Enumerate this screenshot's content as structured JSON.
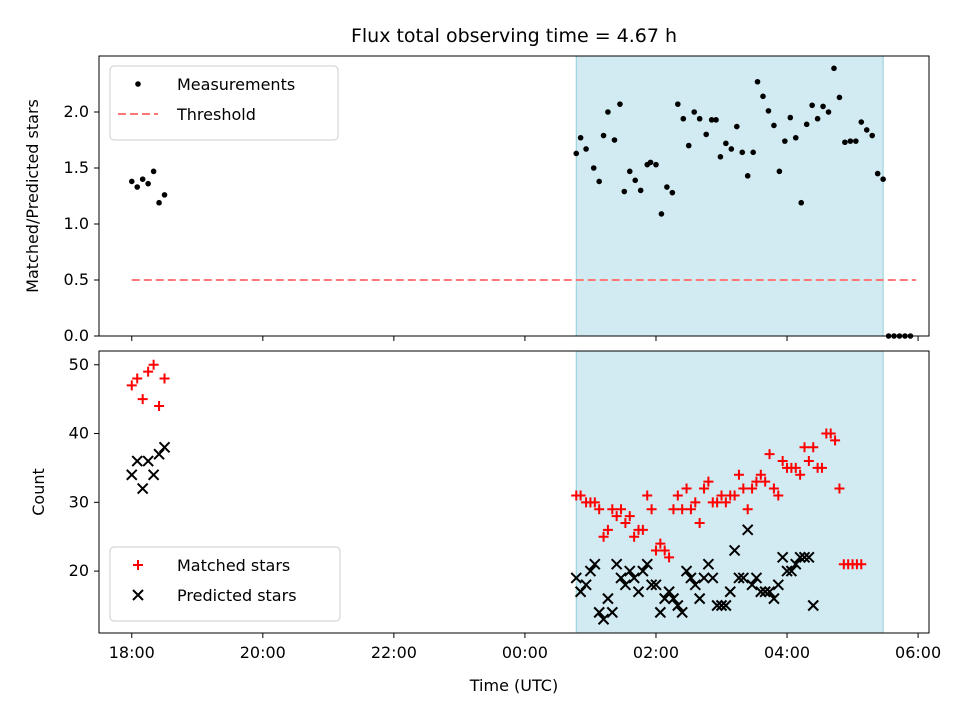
{
  "chart_data": [
    {
      "type": "scatter",
      "title": "Flux total observing time = 4.67 h",
      "xlabel": "",
      "ylabel": "Matched/Predicted stars",
      "xlim": [
        "17:30",
        "06:10"
      ],
      "ylim": [
        0,
        2.5
      ],
      "yticks": [
        "0.0",
        "0.5",
        "1.0",
        "1.5",
        "2.0"
      ],
      "shaded_region": {
        "start": "00:47",
        "end": "05:28",
        "color": "#add8e6"
      },
      "legend": {
        "placement": "top-left",
        "entries": [
          "Measurements",
          "Threshold"
        ]
      },
      "threshold": {
        "name": "Threshold",
        "value": 0.5,
        "x_start": "18:00",
        "x_end": "05:58",
        "color": "#ff7777",
        "style": "dashed"
      },
      "series": [
        {
          "name": "Measurements",
          "color": "#000000",
          "marker": "dot",
          "points": [
            [
              "18:00",
              1.38
            ],
            [
              "18:05",
              1.33
            ],
            [
              "18:10",
              1.4
            ],
            [
              "18:15",
              1.36
            ],
            [
              "18:20",
              1.47
            ],
            [
              "18:25",
              1.19
            ],
            [
              "18:30",
              1.26
            ],
            [
              "00:47",
              1.63
            ],
            [
              "00:51",
              1.77
            ],
            [
              "00:56",
              1.67
            ],
            [
              "01:03",
              1.5
            ],
            [
              "01:08",
              1.38
            ],
            [
              "01:12",
              1.79
            ],
            [
              "01:16",
              2.0
            ],
            [
              "01:22",
              1.75
            ],
            [
              "01:27",
              2.07
            ],
            [
              "01:31",
              1.29
            ],
            [
              "01:36",
              1.47
            ],
            [
              "01:41",
              1.39
            ],
            [
              "01:46",
              1.3
            ],
            [
              "01:52",
              1.53
            ],
            [
              "01:55",
              1.55
            ],
            [
              "02:00",
              1.53
            ],
            [
              "02:05",
              1.09
            ],
            [
              "02:10",
              1.33
            ],
            [
              "02:15",
              1.28
            ],
            [
              "02:20",
              2.07
            ],
            [
              "02:25",
              1.94
            ],
            [
              "02:30",
              1.7
            ],
            [
              "02:35",
              2.0
            ],
            [
              "02:40",
              1.94
            ],
            [
              "02:46",
              1.8
            ],
            [
              "02:51",
              1.93
            ],
            [
              "02:55",
              1.93
            ],
            [
              "02:59",
              1.6
            ],
            [
              "03:04",
              1.72
            ],
            [
              "03:09",
              1.67
            ],
            [
              "03:14",
              1.87
            ],
            [
              "03:19",
              1.64
            ],
            [
              "03:24",
              1.43
            ],
            [
              "03:29",
              1.64
            ],
            [
              "03:33",
              2.27
            ],
            [
              "03:38",
              2.14
            ],
            [
              "03:43",
              2.01
            ],
            [
              "03:48",
              1.88
            ],
            [
              "03:53",
              1.47
            ],
            [
              "03:58",
              1.74
            ],
            [
              "04:03",
              1.95
            ],
            [
              "04:08",
              1.77
            ],
            [
              "04:13",
              1.19
            ],
            [
              "04:18",
              1.89
            ],
            [
              "04:23",
              2.06
            ],
            [
              "04:28",
              1.94
            ],
            [
              "04:33",
              2.05
            ],
            [
              "04:38",
              2.0
            ],
            [
              "04:43",
              2.39
            ],
            [
              "04:48",
              2.13
            ],
            [
              "04:53",
              1.73
            ],
            [
              "04:58",
              1.74
            ],
            [
              "05:03",
              1.74
            ],
            [
              "05:08",
              1.91
            ],
            [
              "05:13",
              1.84
            ],
            [
              "05:18",
              1.79
            ],
            [
              "05:23",
              1.45
            ],
            [
              "05:28",
              1.4
            ],
            [
              "05:33",
              0.0
            ],
            [
              "05:38",
              0.0
            ],
            [
              "05:43",
              0.0
            ],
            [
              "05:48",
              0.0
            ],
            [
              "05:53",
              0.0
            ]
          ]
        }
      ]
    },
    {
      "type": "scatter",
      "title": "",
      "xlabel": "Time (UTC)",
      "ylabel": "Count",
      "xlim": [
        "17:30",
        "06:10"
      ],
      "ylim": [
        11,
        52
      ],
      "yticks": [
        "20",
        "30",
        "40",
        "50"
      ],
      "xticks": [
        "18:00",
        "20:00",
        "22:00",
        "00:00",
        "02:00",
        "04:00",
        "06:00"
      ],
      "shaded_region": {
        "start": "00:47",
        "end": "05:28",
        "color": "#add8e6"
      },
      "legend": {
        "placement": "bottom-left",
        "entries": [
          "Matched stars",
          "Predicted stars"
        ]
      },
      "series": [
        {
          "name": "Matched stars",
          "color": "#ff0000",
          "marker": "plus",
          "points": [
            [
              "18:00",
              47
            ],
            [
              "18:05",
              48
            ],
            [
              "18:10",
              45
            ],
            [
              "18:15",
              49
            ],
            [
              "18:20",
              50
            ],
            [
              "18:25",
              44
            ],
            [
              "18:30",
              48
            ],
            [
              "00:47",
              31
            ],
            [
              "00:51",
              31
            ],
            [
              "00:56",
              30
            ],
            [
              "01:00",
              30
            ],
            [
              "01:04",
              30
            ],
            [
              "01:08",
              29
            ],
            [
              "01:12",
              25
            ],
            [
              "01:16",
              26
            ],
            [
              "01:20",
              29
            ],
            [
              "01:24",
              28
            ],
            [
              "01:28",
              29
            ],
            [
              "01:32",
              27
            ],
            [
              "01:36",
              28
            ],
            [
              "01:40",
              25
            ],
            [
              "01:44",
              26
            ],
            [
              "01:48",
              26
            ],
            [
              "01:52",
              31
            ],
            [
              "01:56",
              29
            ],
            [
              "02:00",
              23
            ],
            [
              "02:04",
              24
            ],
            [
              "02:08",
              23
            ],
            [
              "02:12",
              22
            ],
            [
              "02:16",
              29
            ],
            [
              "02:20",
              31
            ],
            [
              "02:24",
              29
            ],
            [
              "02:28",
              32
            ],
            [
              "02:32",
              29
            ],
            [
              "02:36",
              30
            ],
            [
              "02:40",
              27
            ],
            [
              "02:44",
              32
            ],
            [
              "02:48",
              33
            ],
            [
              "02:52",
              30
            ],
            [
              "02:56",
              30
            ],
            [
              "03:00",
              31
            ],
            [
              "03:04",
              30
            ],
            [
              "03:08",
              31
            ],
            [
              "03:12",
              31
            ],
            [
              "03:16",
              34
            ],
            [
              "03:20",
              32
            ],
            [
              "03:24",
              29
            ],
            [
              "03:28",
              32
            ],
            [
              "03:32",
              33
            ],
            [
              "03:36",
              34
            ],
            [
              "03:40",
              33
            ],
            [
              "03:44",
              37
            ],
            [
              "03:48",
              32
            ],
            [
              "03:52",
              31
            ],
            [
              "03:56",
              36
            ],
            [
              "04:00",
              35
            ],
            [
              "04:04",
              35
            ],
            [
              "04:08",
              35
            ],
            [
              "04:12",
              34
            ],
            [
              "04:16",
              38
            ],
            [
              "04:20",
              36
            ],
            [
              "04:24",
              38
            ],
            [
              "04:28",
              35
            ],
            [
              "04:32",
              35
            ],
            [
              "04:36",
              40
            ],
            [
              "04:40",
              40
            ],
            [
              "04:44",
              39
            ],
            [
              "04:48",
              32
            ],
            [
              "04:52",
              21
            ],
            [
              "04:56",
              21
            ],
            [
              "05:00",
              21
            ],
            [
              "05:04",
              21
            ],
            [
              "05:08",
              21
            ]
          ]
        },
        {
          "name": "Predicted stars",
          "color": "#000000",
          "marker": "x",
          "points": [
            [
              "18:00",
              34
            ],
            [
              "18:05",
              36
            ],
            [
              "18:10",
              32
            ],
            [
              "18:15",
              36
            ],
            [
              "18:20",
              34
            ],
            [
              "18:25",
              37
            ],
            [
              "18:30",
              38
            ],
            [
              "00:47",
              19
            ],
            [
              "00:51",
              17
            ],
            [
              "00:56",
              18
            ],
            [
              "01:00",
              20
            ],
            [
              "01:04",
              21
            ],
            [
              "01:08",
              14
            ],
            [
              "01:12",
              13
            ],
            [
              "01:16",
              16
            ],
            [
              "01:20",
              14
            ],
            [
              "01:24",
              21
            ],
            [
              "01:28",
              19
            ],
            [
              "01:32",
              18
            ],
            [
              "01:36",
              20
            ],
            [
              "01:40",
              19
            ],
            [
              "01:44",
              17
            ],
            [
              "01:48",
              20
            ],
            [
              "01:52",
              21
            ],
            [
              "01:56",
              18
            ],
            [
              "02:00",
              18
            ],
            [
              "02:04",
              14
            ],
            [
              "02:08",
              16
            ],
            [
              "02:12",
              17
            ],
            [
              "02:16",
              16
            ],
            [
              "02:20",
              15
            ],
            [
              "02:24",
              14
            ],
            [
              "02:28",
              20
            ],
            [
              "02:32",
              19
            ],
            [
              "02:36",
              18
            ],
            [
              "02:40",
              16
            ],
            [
              "02:44",
              19
            ],
            [
              "02:48",
              21
            ],
            [
              "02:52",
              19
            ],
            [
              "02:56",
              15
            ],
            [
              "03:00",
              15
            ],
            [
              "03:04",
              15
            ],
            [
              "03:08",
              17
            ],
            [
              "03:12",
              23
            ],
            [
              "03:16",
              19
            ],
            [
              "03:20",
              19
            ],
            [
              "03:24",
              26
            ],
            [
              "03:28",
              18
            ],
            [
              "03:32",
              19
            ],
            [
              "03:36",
              17
            ],
            [
              "03:40",
              17
            ],
            [
              "03:44",
              17
            ],
            [
              "03:48",
              16
            ],
            [
              "03:52",
              18
            ],
            [
              "03:56",
              22
            ],
            [
              "04:00",
              20
            ],
            [
              "04:04",
              20
            ],
            [
              "04:08",
              21
            ],
            [
              "04:12",
              22
            ],
            [
              "04:16",
              22
            ],
            [
              "04:20",
              22
            ],
            [
              "04:24",
              15
            ]
          ]
        }
      ]
    }
  ]
}
